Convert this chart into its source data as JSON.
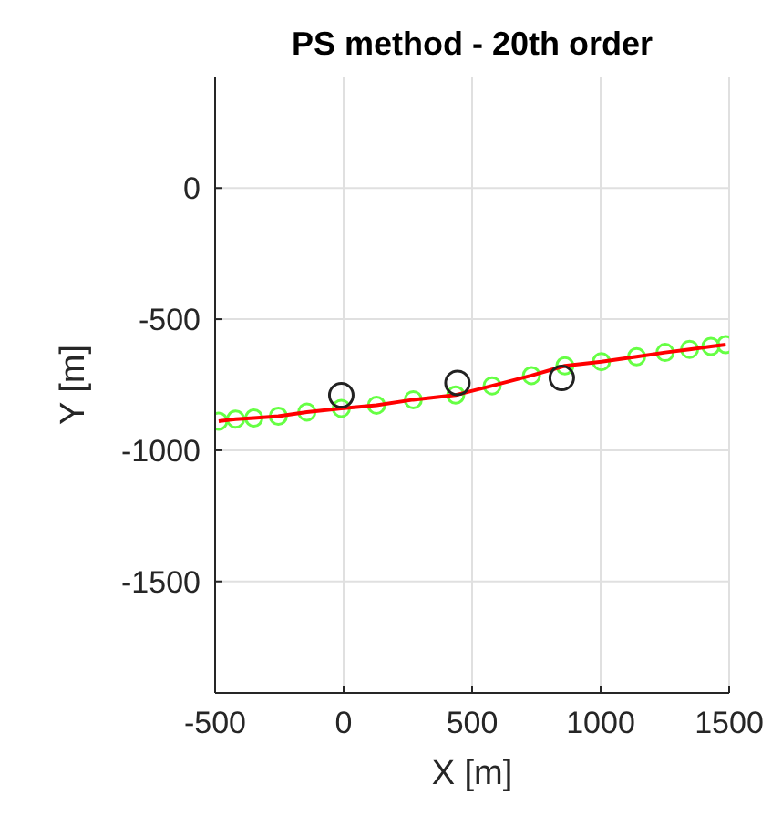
{
  "chart_data": {
    "type": "line",
    "title": "PS method - 20th order",
    "xlabel": "X [m]",
    "ylabel": "Y [m]",
    "xlim": [
      -500,
      1500
    ],
    "xticks": [
      -500,
      0,
      500,
      1000,
      1500
    ],
    "ylim": [
      -1925,
      425
    ],
    "yticks": [
      -1500,
      -1000,
      -500,
      0
    ],
    "grid": true,
    "series": [
      {
        "type": "scatter",
        "marker": "circle",
        "color": "#66ff44",
        "x": [
          -486,
          -420,
          -349,
          -254,
          -143,
          -9,
          128,
          271,
          436,
          578,
          731,
          861,
          1003,
          1140,
          1251,
          1346,
          1429,
          1487
        ],
        "values": [
          -889,
          -881,
          -877,
          -870,
          -854,
          -840,
          -828,
          -807,
          -789,
          -754,
          -715,
          -678,
          -662,
          -643,
          -627,
          -615,
          -604,
          -597
        ]
      },
      {
        "color": "#ff0000",
        "x": [
          -486,
          -420,
          -349,
          -254,
          -143,
          -9,
          128,
          271,
          436,
          578,
          731,
          861,
          1003,
          1140,
          1251,
          1346,
          1429,
          1487
        ],
        "values": [
          -889,
          -881,
          -877,
          -870,
          -854,
          -840,
          -828,
          -807,
          -789,
          -754,
          -715,
          -678,
          -662,
          -643,
          -627,
          -615,
          -604,
          -597
        ]
      },
      {
        "type": "scatter",
        "marker": "circle",
        "color": "#222222",
        "x": [
          -9,
          443,
          849
        ],
        "values": [
          -790,
          -743,
          -724
        ]
      }
    ]
  }
}
